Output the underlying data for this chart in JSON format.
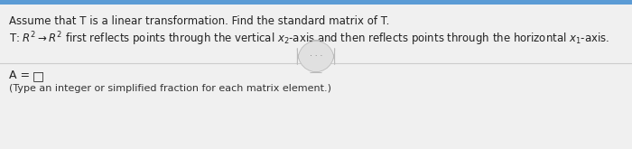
{
  "bg_color": "#f0f0f0",
  "top_bar_color": "#5b9bd5",
  "top_bar_height": 0.055,
  "divider_color": "#cccccc",
  "line1": "Assume that T is a linear transformation. Find the standard matrix of T.",
  "line2": "T: R²→R² first reflects points through the vertical x₂-axis and then reflects points through the horizontal x₁-axis.",
  "line2_latex": "T: $R^2\\rightarrow R^2$ first reflects points through the vertical $x_2$-axis and then reflects points through the horizontal $x_1$-axis.",
  "dots_text": "· · ·",
  "answer_label": "A =",
  "answer_box": "□",
  "footer_text": "(Type an integer or simplified fraction for each matrix element.)",
  "font_size_line1": 8.5,
  "font_size_line2": 8.5,
  "font_size_answer": 9,
  "font_size_footer": 8,
  "text_color": "#222222",
  "footer_color": "#333333",
  "dots_color": "#666666",
  "dots_bg": "#e0e0e0",
  "dots_border": "#bbbbbb"
}
